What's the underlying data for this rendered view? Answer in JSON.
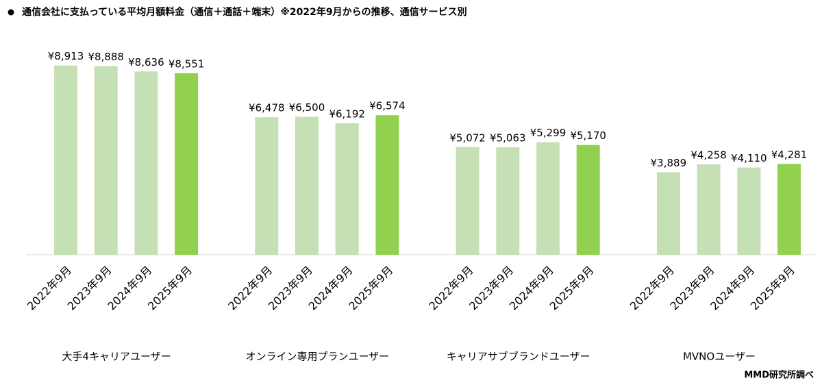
{
  "chart_data": {
    "type": "bar",
    "title": "通信会社に支払っている平均月額料金（通信＋通話＋端末）※2022年9月からの推移、通信サービス別",
    "categories": [
      "大手4キャリアユーザー",
      "オンライン専用プランユーザー",
      "キャリアサブブランドユーザー",
      "MVNOユーザー"
    ],
    "series": [
      {
        "name": "2022年9月",
        "color": "#c5e0b4",
        "values": [
          8913,
          6478,
          5072,
          3889
        ],
        "value_labels": [
          "¥8,913",
          "¥6,478",
          "¥5,072",
          "¥3,889"
        ]
      },
      {
        "name": "2023年9月",
        "color": "#c5e0b4",
        "values": [
          8888,
          6500,
          5063,
          4258
        ],
        "value_labels": [
          "¥8,888",
          "¥6,500",
          "¥5,063",
          "¥4,258"
        ]
      },
      {
        "name": "2024年9月",
        "color": "#c5e0b4",
        "values": [
          8636,
          6192,
          5299,
          4110
        ],
        "value_labels": [
          "¥8,636",
          "¥6,192",
          "¥5,299",
          "¥4,110"
        ]
      },
      {
        "name": "2025年9月",
        "color": "#92d050",
        "values": [
          8551,
          6574,
          5170,
          4281
        ],
        "value_labels": [
          "¥8,551",
          "¥6,574",
          "¥5,170",
          "¥4,281"
        ]
      }
    ],
    "ylim": [
      0,
      10000
    ],
    "source": "MMD研究所調べ"
  }
}
